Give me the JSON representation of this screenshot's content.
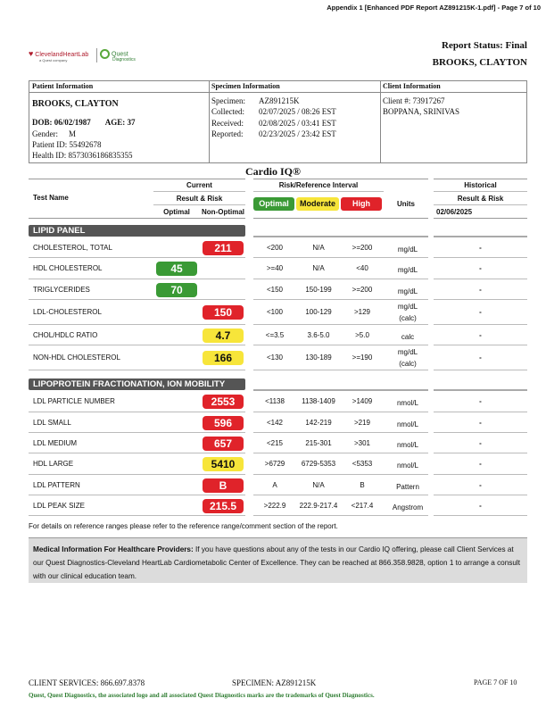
{
  "appendix": "Appendix 1 [Enhanced PDF Report AZ891215K-1.pdf] - Page 7 of 10",
  "logos": {
    "cleveland": "ClevelandHeartLab",
    "cleveland_sub": "a Quest company",
    "quest": "Quest",
    "quest_sub": "Diagnostics"
  },
  "report_status": "Report Status: Final",
  "header_name": "BROOKS, CLAYTON",
  "patient": {
    "header": "Patient Information",
    "name": "BROOKS, CLAYTON",
    "dob_label": "DOB: 06/02/1987",
    "age_label": "AGE: 37",
    "gender_label": "Gender:",
    "gender": "M",
    "patient_id": "Patient ID:  55492678",
    "health_id": "Health ID:  8573036186835355"
  },
  "specimen": {
    "header": "Specimen Information",
    "rows": [
      {
        "label": "Specimen:",
        "value": "AZ891215K"
      },
      {
        "label": "Collected:",
        "value": "02/07/2025  / 08:26 EST"
      },
      {
        "label": "Received:",
        "value": "02/08/2025  / 03:41 EST"
      },
      {
        "label": "Reported:",
        "value": "02/23/2025  / 23:42 EST"
      }
    ]
  },
  "client": {
    "header": "Client Information",
    "number": "Client #: 73917267",
    "physician": "BOPPANA, SRINIVAS"
  },
  "report_title": "Cardio IQ®",
  "table_headers": {
    "test_name": "Test Name",
    "current": "Current",
    "result_risk": "Result & Risk",
    "optimal": "Optimal",
    "non_optimal": "Non-Optimal",
    "risk_interval": "Risk/Reference Interval",
    "legend_optimal": "Optimal",
    "legend_moderate": "Moderate",
    "legend_high": "High",
    "units": "Units",
    "historical": "Historical",
    "hist_result_risk": "Result & Risk",
    "hist_date": "02/06/2025"
  },
  "colors": {
    "optimal": "#3a9a35",
    "moderate": "#f7e53a",
    "high": "#e0232a",
    "section_bar": "#555555",
    "info_box": "#dcdcdc"
  },
  "sections": {
    "lipid": "LIPID PANEL",
    "lipo": "LIPOPROTEIN FRACTIONATION, ION MOBILITY"
  },
  "lipid_rows": [
    {
      "name": "CHOLESTEROL, TOTAL",
      "value": "211",
      "risk": "red",
      "optimal": "<200",
      "moderate": "N/A",
      "high": ">=200",
      "units": "mg/dL",
      "units2": "",
      "historical": "-"
    },
    {
      "name": "HDL CHOLESTEROL",
      "value": "45",
      "risk": "green",
      "optimal": ">=40",
      "moderate": "N/A",
      "high": "<40",
      "units": "mg/dL",
      "units2": "",
      "historical": "-"
    },
    {
      "name": "TRIGLYCERIDES",
      "value": "70",
      "risk": "green",
      "optimal": "<150",
      "moderate": "150-199",
      "high": ">=200",
      "units": "mg/dL",
      "units2": "",
      "historical": "-"
    },
    {
      "name": "LDL-CHOLESTEROL",
      "value": "150",
      "risk": "red",
      "optimal": "<100",
      "moderate": "100-129",
      "high": ">129",
      "units": "mg/dL",
      "units2": "(calc)",
      "historical": "-"
    },
    {
      "name": "CHOL/HDLC RATIO",
      "value": "4.7",
      "risk": "yellow",
      "optimal": "<=3.5",
      "moderate": "3.6-5.0",
      "high": ">5.0",
      "units": "calc",
      "units2": "",
      "historical": "-"
    },
    {
      "name": "NON-HDL CHOLESTEROL",
      "value": "166",
      "risk": "yellow",
      "optimal": "<130",
      "moderate": "130-189",
      "high": ">=190",
      "units": "mg/dL",
      "units2": "(calc)",
      "historical": "-"
    }
  ],
  "lipo_rows": [
    {
      "name": "LDL PARTICLE NUMBER",
      "value": "2553",
      "risk": "red",
      "optimal": "<1138",
      "moderate": "1138-1409",
      "high": ">1409",
      "units": "nmol/L",
      "units2": "",
      "historical": "-"
    },
    {
      "name": "LDL SMALL",
      "value": "596",
      "risk": "red",
      "optimal": "<142",
      "moderate": "142-219",
      "high": ">219",
      "units": "nmol/L",
      "units2": "",
      "historical": "-"
    },
    {
      "name": "LDL MEDIUM",
      "value": "657",
      "risk": "red",
      "optimal": "<215",
      "moderate": "215-301",
      "high": ">301",
      "units": "nmol/L",
      "units2": "",
      "historical": "-"
    },
    {
      "name": "HDL LARGE",
      "value": "5410",
      "risk": "yellow",
      "optimal": ">6729",
      "moderate": "6729-5353",
      "high": "<5353",
      "units": "nmol/L",
      "units2": "",
      "historical": "-"
    },
    {
      "name": "LDL PATTERN",
      "value": "B",
      "risk": "red",
      "optimal": "A",
      "moderate": "N/A",
      "high": "B",
      "units": "Pattern",
      "units2": "",
      "historical": "-"
    },
    {
      "name": "LDL PEAK SIZE",
      "value": "215.5",
      "risk": "red",
      "optimal": ">222.9",
      "moderate": "222.9-217.4",
      "high": "<217.4",
      "units": "Angstrom",
      "units2": "",
      "historical": "-"
    }
  ],
  "footnote": "For details on reference ranges please refer to the reference range/comment section of the report.",
  "med_info": {
    "label": "Medical Information For Healthcare Providers:",
    "text": " If you have questions about any of the tests in our Cardio IQ offering, please call Client Services at our Quest Diagnostics-Cleveland HeartLab Cardiometabolic Center of Excellence. They can be reached at 866.358.9828, option 1 to arrange a consult with our clinical education team."
  },
  "footer": {
    "client_services": "CLIENT SERVICES: 866.697.8378",
    "specimen": "SPECIMEN: AZ891215K",
    "page": "PAGE 7 OF 10",
    "trademark": "Quest, Quest Diagnostics, the associated logo and all associated Quest Diagnostics marks are the trademarks of Quest Diagnostics."
  }
}
